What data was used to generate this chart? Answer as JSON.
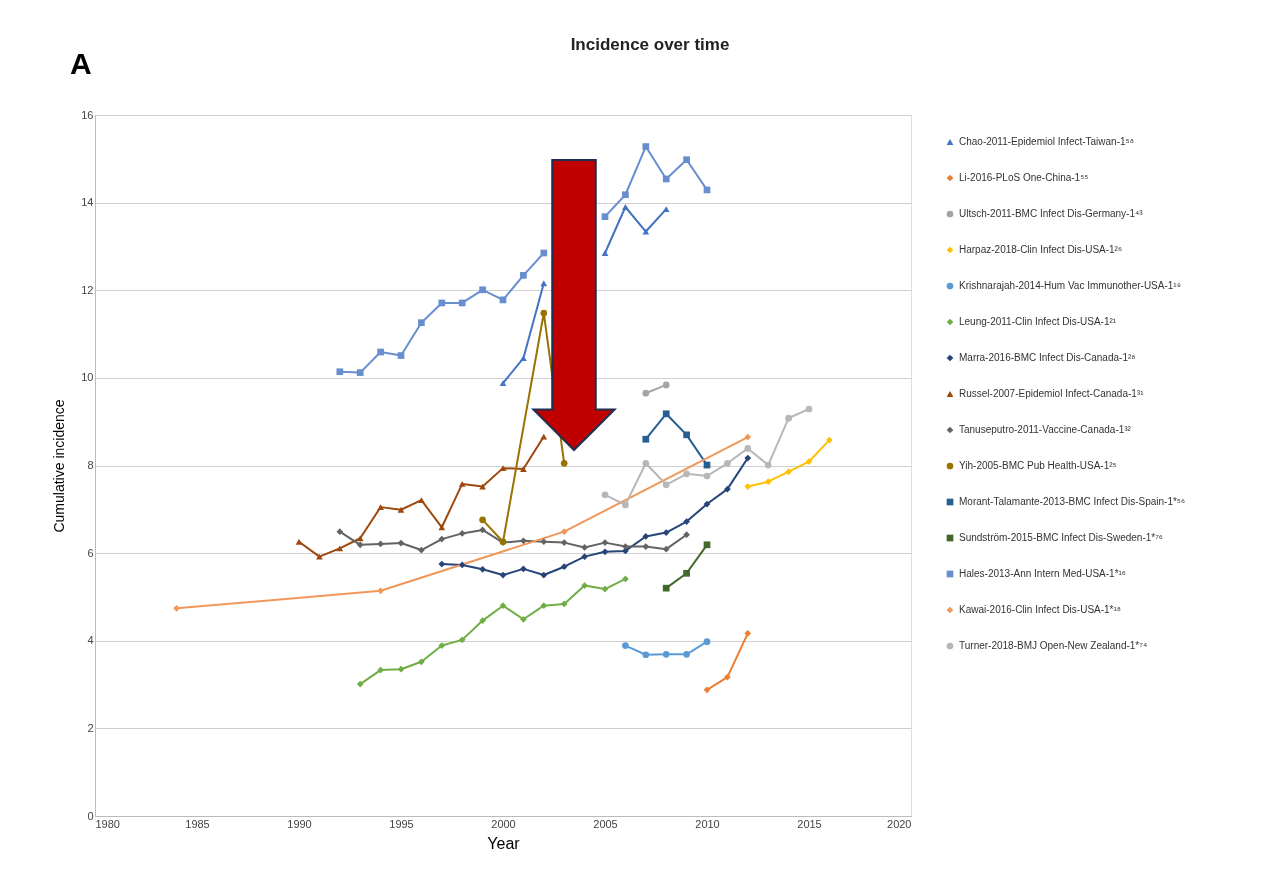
{
  "chart_data": {
    "type": "line",
    "title": "Incidence over time",
    "xlabel": "Year",
    "ylabel": "Cumulative incidence",
    "annotations": [
      "A"
    ],
    "xlim": [
      1980,
      2020
    ],
    "xticks": [
      1980,
      1985,
      1990,
      1995,
      2000,
      2005,
      2010,
      2015,
      2020
    ],
    "ylim": [
      0,
      16
    ],
    "yticks": [
      0,
      2,
      4,
      6,
      8,
      10,
      12,
      14,
      16
    ],
    "grid": "y",
    "legend": "right",
    "line_style": "solid",
    "series": [
      {
        "name": "Chao-2011-Epidemiol Infect-Taiwan-1⁵⁸",
        "color": "#4472c4",
        "marker": "triangle",
        "x": [
          2000,
          2001,
          2002,
          2003,
          2004,
          2005,
          2006,
          2007,
          2008
        ],
        "values": [
          9.88,
          10.45,
          12.16,
          null,
          null,
          12.85,
          13.9,
          13.34,
          13.85
        ]
      },
      {
        "name": "Li-2016-PLoS One-China-1⁵⁵",
        "color": "#ed7d31",
        "marker": "diamond",
        "x": [
          2010,
          2011,
          2012
        ],
        "values": [
          2.88,
          3.17,
          4.17
        ]
      },
      {
        "name": "Ultsch-2011-BMC Infect Dis-Germany-1⁴³",
        "color": "#a5a5a5",
        "marker": "circle",
        "x": [
          2007,
          2008
        ],
        "values": [
          9.65,
          9.84
        ]
      },
      {
        "name": "Harpaz-2018-Clin Infect Dis-USA-1²⁶",
        "color": "#ffc000",
        "marker": "diamond",
        "x": [
          2012,
          2013,
          2014,
          2015,
          2016
        ],
        "values": [
          7.52,
          7.63,
          7.86,
          8.09,
          8.58
        ]
      },
      {
        "name": "Krishnarajah-2014-Hum Vac Immunother-USA-1¹⁹",
        "color": "#5b9bd5",
        "marker": "circle",
        "x": [
          2006,
          2007,
          2008,
          2009,
          2010
        ],
        "values": [
          3.89,
          3.68,
          3.69,
          3.69,
          3.98
        ]
      },
      {
        "name": "Leung-2011-Clin Infect Dis-USA-1²¹",
        "color": "#70ad47",
        "marker": "diamond",
        "x": [
          1993,
          1994,
          1995,
          1996,
          1997,
          1998,
          1999,
          2000,
          2001,
          2002,
          2003,
          2004,
          2005,
          2006
        ],
        "values": [
          3.01,
          3.33,
          3.35,
          3.52,
          3.89,
          4.02,
          4.46,
          4.8,
          4.49,
          4.8,
          4.84,
          5.26,
          5.18,
          5.41
        ]
      },
      {
        "name": "Marra-2016-BMC Infect Dis-Canada-1²⁸",
        "color": "#264478",
        "marker": "diamond",
        "x": [
          1997,
          1998,
          1999,
          2000,
          2001,
          2002,
          2003,
          2004,
          2005,
          2006,
          2007,
          2008,
          2009,
          2010,
          2011,
          2012
        ],
        "values": [
          5.75,
          5.73,
          5.63,
          5.5,
          5.64,
          5.5,
          5.69,
          5.92,
          6.03,
          6.05,
          6.38,
          6.47,
          6.72,
          7.12,
          7.46,
          8.17
        ]
      },
      {
        "name": "Russel-2007-Epidemiol Infect-Canada-1³¹",
        "color": "#9e480e",
        "marker": "triangle",
        "x": [
          1990,
          1991,
          1992,
          1993,
          1994,
          1995,
          1996,
          1997,
          1998,
          1999,
          2000,
          2001,
          2002
        ],
        "values": [
          6.26,
          5.92,
          6.11,
          6.34,
          7.05,
          6.99,
          7.21,
          6.59,
          7.58,
          7.52,
          7.94,
          7.92,
          8.66
        ]
      },
      {
        "name": "Tanuseputro-2011-Vaccine-Canada-1³²",
        "color": "#636363",
        "marker": "diamond",
        "x": [
          1992,
          1993,
          1994,
          1995,
          1996,
          1997,
          1998,
          1999,
          2000,
          2001,
          2002,
          2003,
          2004,
          2005,
          2006,
          2007,
          2008,
          2009
        ],
        "values": [
          6.49,
          6.19,
          6.21,
          6.23,
          6.07,
          6.32,
          6.45,
          6.53,
          6.24,
          6.28,
          6.26,
          6.24,
          6.13,
          6.24,
          6.15,
          6.15,
          6.09,
          6.42
        ]
      },
      {
        "name": "Yih-2005-BMC Pub Health-USA-1²⁵",
        "color": "#997300",
        "marker": "circle",
        "x": [
          1999,
          2000,
          2002,
          2003
        ],
        "values": [
          6.76,
          6.26,
          11.48,
          8.05
        ]
      },
      {
        "name": "Morant-Talamante-2013-BMC Infect Dis-Spain-1*⁵⁶",
        "color": "#255e91",
        "marker": "square",
        "x": [
          2007,
          2008,
          2009,
          2010
        ],
        "values": [
          8.6,
          9.18,
          8.7,
          8.01
        ]
      },
      {
        "name": "Sundström-2015-BMC Infect Dis-Sweden-1*⁷⁶",
        "color": "#43682b",
        "marker": "square",
        "x": [
          2008,
          2009,
          2010
        ],
        "values": [
          5.2,
          5.54,
          6.19
        ]
      },
      {
        "name": "Hales-2013-Ann Intern Med-USA-1*¹⁶",
        "color": "#698ed0",
        "marker": "square",
        "x": [
          1992,
          1993,
          1994,
          1995,
          1996,
          1997,
          1998,
          1999,
          2000,
          2001,
          2002,
          2003,
          2004,
          2005,
          2006,
          2007,
          2008,
          2009,
          2010
        ],
        "values": [
          10.14,
          10.12,
          10.59,
          10.51,
          11.26,
          11.71,
          11.71,
          12.01,
          11.78,
          12.34,
          12.85,
          null,
          null,
          13.68,
          14.18,
          15.28,
          14.54,
          14.98,
          14.29
        ]
      },
      {
        "name": "Kawai-2016-Clin Infect Dis-USA-1*¹⁸",
        "color": "#f1975a",
        "marker": "diamond",
        "x": [
          1984,
          1994,
          2003,
          2012
        ],
        "values": [
          4.74,
          5.14,
          6.49,
          8.65
        ]
      },
      {
        "name": "Turner-2018-BMJ Open-New Zealand-1*⁷⁴",
        "color": "#b7b7b7",
        "marker": "circle",
        "x": [
          2005,
          2006,
          2007,
          2008,
          2009,
          2010,
          2011,
          2012,
          2013,
          2014,
          2015
        ],
        "values": [
          7.33,
          7.1,
          8.05,
          7.56,
          7.81,
          7.76,
          8.05,
          8.39,
          8.01,
          9.08,
          9.29
        ]
      }
    ]
  }
}
